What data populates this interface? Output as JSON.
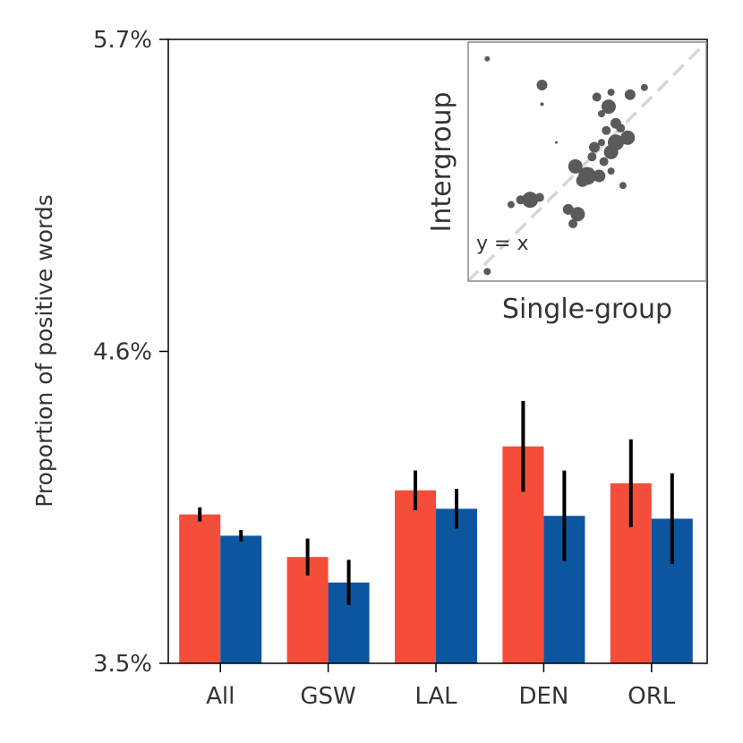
{
  "chart_data": {
    "type": "bar",
    "ylabel": "Proportion of positive words",
    "ylim": [
      3.5,
      5.7
    ],
    "yticks": [
      "3.5%",
      "4.6%",
      "5.7%"
    ],
    "yticks_values": [
      3.5,
      4.6,
      5.7
    ],
    "categories": [
      "All",
      "GSW",
      "LAL",
      "DEN",
      "ORL"
    ],
    "series": [
      {
        "name": "Intergroup",
        "color": "#f44e3b",
        "values": [
          4.025,
          3.875,
          4.11,
          4.265,
          4.135
        ],
        "error": [
          0.025,
          0.065,
          0.07,
          0.16,
          0.155
        ]
      },
      {
        "name": "Single-group",
        "color": "#0c56a0",
        "values": [
          3.95,
          3.785,
          4.045,
          4.02,
          4.01
        ],
        "error": [
          0.02,
          0.08,
          0.07,
          0.16,
          0.16
        ]
      }
    ],
    "inset": {
      "type": "scatter",
      "xlabel": "Single-group",
      "ylabel": "Intergroup",
      "annotation": "y = x",
      "reference_line": "y = x",
      "points": [
        {
          "x": 0.08,
          "y": 0.93,
          "r": 3
        },
        {
          "x": 0.31,
          "y": 0.74,
          "r": 2
        },
        {
          "x": 0.37,
          "y": 0.58,
          "r": 1.5
        },
        {
          "x": 0.08,
          "y": 0.04,
          "r": 4
        },
        {
          "x": 0.26,
          "y": 0.34,
          "r": 9
        },
        {
          "x": 0.22,
          "y": 0.34,
          "r": 5
        },
        {
          "x": 0.18,
          "y": 0.32,
          "r": 4
        },
        {
          "x": 0.3,
          "y": 0.35,
          "r": 5
        },
        {
          "x": 0.42,
          "y": 0.3,
          "r": 6
        },
        {
          "x": 0.46,
          "y": 0.28,
          "r": 8
        },
        {
          "x": 0.44,
          "y": 0.24,
          "r": 5
        },
        {
          "x": 0.5,
          "y": 0.44,
          "r": 10
        },
        {
          "x": 0.45,
          "y": 0.48,
          "r": 8
        },
        {
          "x": 0.55,
          "y": 0.44,
          "r": 7
        },
        {
          "x": 0.57,
          "y": 0.5,
          "r": 5
        },
        {
          "x": 0.53,
          "y": 0.56,
          "r": 6
        },
        {
          "x": 0.6,
          "y": 0.54,
          "r": 8
        },
        {
          "x": 0.62,
          "y": 0.58,
          "r": 9
        },
        {
          "x": 0.67,
          "y": 0.6,
          "r": 8
        },
        {
          "x": 0.58,
          "y": 0.63,
          "r": 5
        },
        {
          "x": 0.62,
          "y": 0.66,
          "r": 6
        },
        {
          "x": 0.56,
          "y": 0.7,
          "r": 4
        },
        {
          "x": 0.54,
          "y": 0.77,
          "r": 5
        },
        {
          "x": 0.6,
          "y": 0.79,
          "r": 4
        },
        {
          "x": 0.59,
          "y": 0.73,
          "r": 8
        },
        {
          "x": 0.68,
          "y": 0.78,
          "r": 6
        },
        {
          "x": 0.74,
          "y": 0.81,
          "r": 4
        },
        {
          "x": 0.64,
          "y": 0.64,
          "r": 5
        },
        {
          "x": 0.48,
          "y": 0.42,
          "r": 7
        },
        {
          "x": 0.6,
          "y": 0.46,
          "r": 4
        },
        {
          "x": 0.65,
          "y": 0.4,
          "r": 4
        },
        {
          "x": 0.52,
          "y": 0.52,
          "r": 5
        },
        {
          "x": 0.56,
          "y": 0.58,
          "r": 4
        },
        {
          "x": 0.31,
          "y": 0.82,
          "r": 6
        }
      ]
    }
  }
}
